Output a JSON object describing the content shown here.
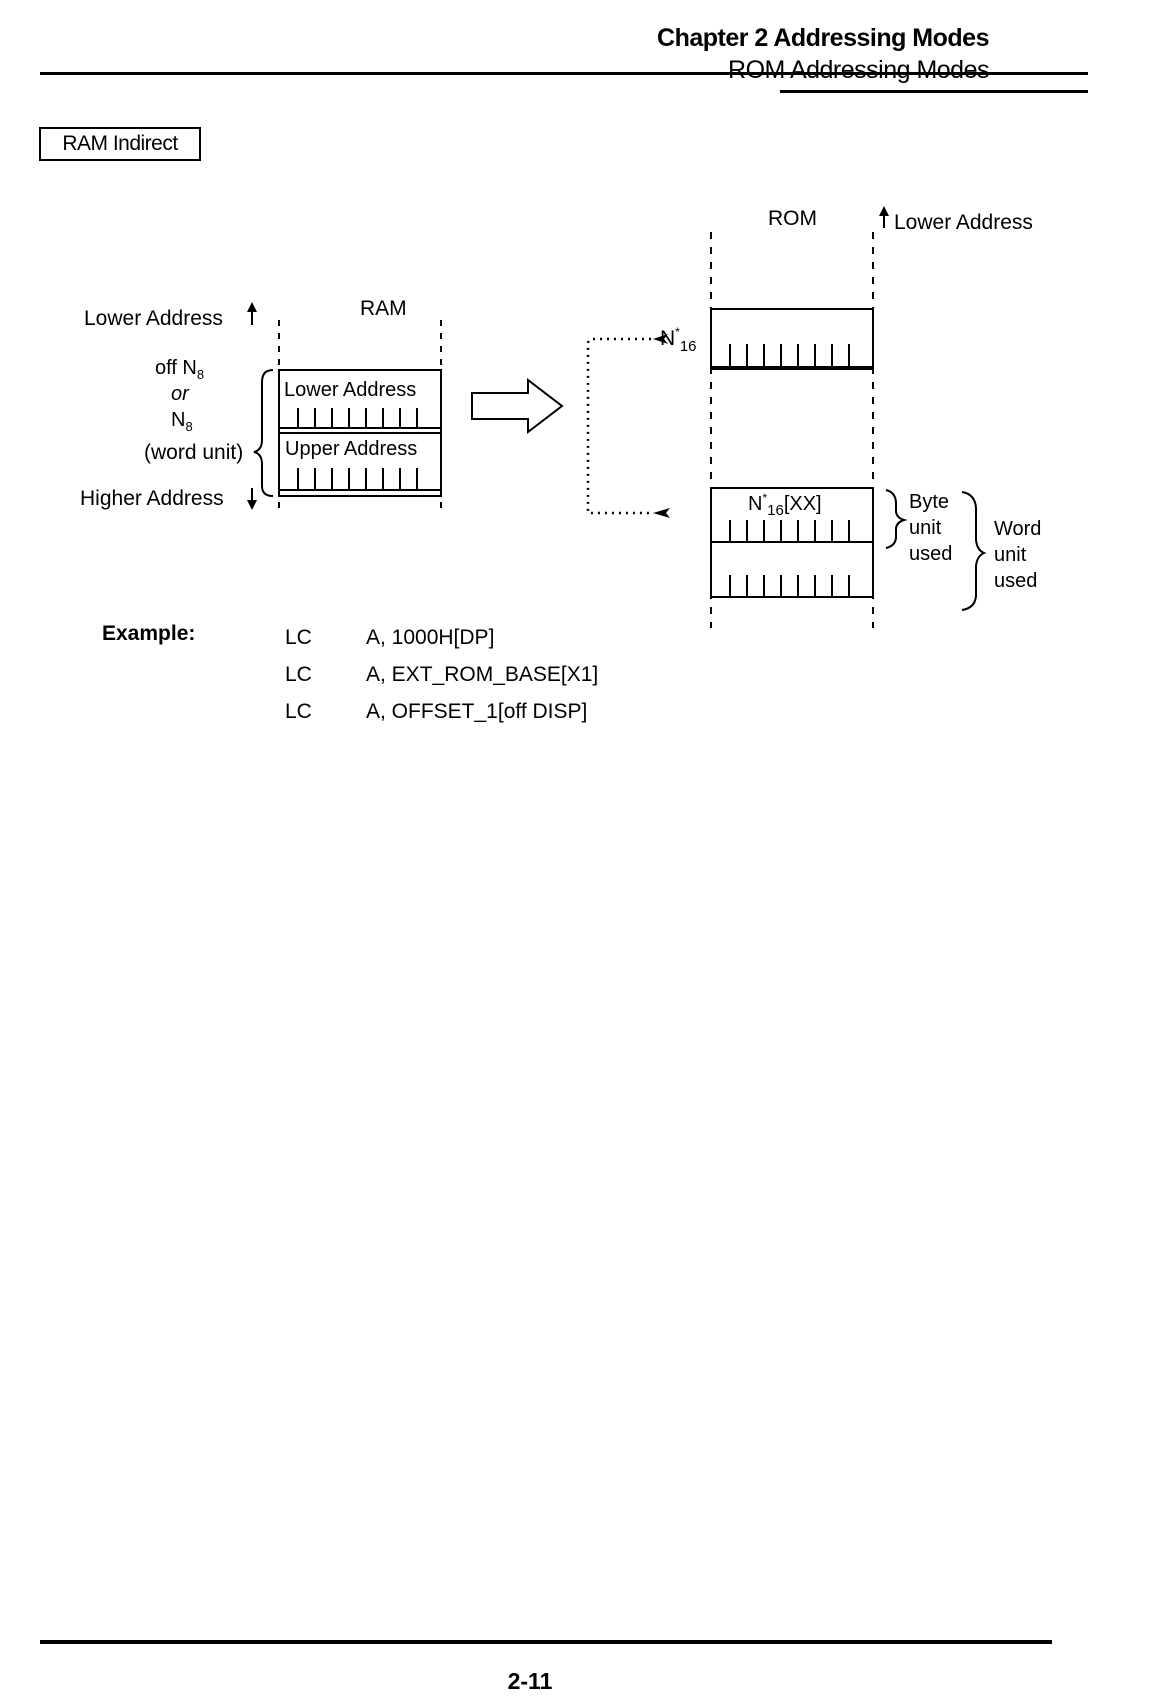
{
  "header": {
    "chapter_title": "Chapter 2  Addressing Modes",
    "section_title": "ROM Addressing Modes"
  },
  "section_label": "RAM Indirect",
  "diagram": {
    "ram": {
      "title": "RAM",
      "lower_address": "Lower Address",
      "higher_address": "Higher Address",
      "operand_off": "off N",
      "operand_off_sub": "8",
      "operand_or": "or",
      "operand_n": "N",
      "operand_n_sub": "8",
      "operand_unit": "(word unit)",
      "cell_lower": "Lower Address",
      "cell_upper": "Upper Address"
    },
    "rom": {
      "title": "ROM",
      "lower_address": "Lower Address",
      "pointer_label": "N",
      "pointer_sup": "*",
      "pointer_sub": "16",
      "cell_index_label": "N",
      "cell_index_sup": "*",
      "cell_index_sub": "16",
      "cell_index_suffix": "[XX]",
      "byte_unit": [
        "Byte",
        "unit",
        "used"
      ],
      "word_unit": [
        "Word",
        "unit",
        "used"
      ]
    }
  },
  "example": {
    "label": "Example:",
    "rows": [
      {
        "mnemonic": "LC",
        "operand": "A, 1000H[DP]"
      },
      {
        "mnemonic": "LC",
        "operand": "A, EXT_ROM_BASE[X1]"
      },
      {
        "mnemonic": "LC",
        "operand": "A, OFFSET_1[off DISP]"
      }
    ]
  },
  "footer": {
    "page_number": "2-11"
  }
}
